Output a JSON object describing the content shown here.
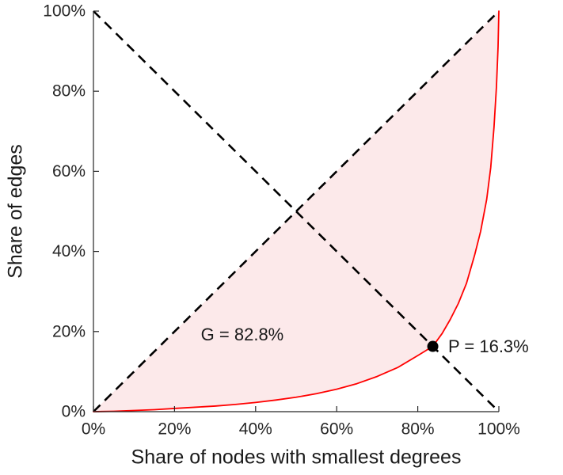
{
  "chart_data": {
    "type": "line",
    "title": "",
    "xlabel": "Share of nodes with smallest degrees",
    "ylabel": "Share of edges",
    "xlim": [
      0,
      100
    ],
    "ylim": [
      0,
      100
    ],
    "grid": false,
    "axis_color": "#262626",
    "x_ticks": [
      {
        "value": 0,
        "label": "0%"
      },
      {
        "value": 20,
        "label": "20%"
      },
      {
        "value": 40,
        "label": "40%"
      },
      {
        "value": 60,
        "label": "60%"
      },
      {
        "value": 80,
        "label": "80%"
      },
      {
        "value": 100,
        "label": "100%"
      }
    ],
    "y_ticks": [
      {
        "value": 0,
        "label": "0%"
      },
      {
        "value": 20,
        "label": "20%"
      },
      {
        "value": 40,
        "label": "40%"
      },
      {
        "value": 60,
        "label": "60%"
      },
      {
        "value": 80,
        "label": "80%"
      },
      {
        "value": 100,
        "label": "100%"
      }
    ],
    "series": [
      {
        "name": "lorenz-curve",
        "color": "#ff0000",
        "width": 1.8,
        "x": [
          0,
          5,
          10,
          15,
          20,
          25,
          30,
          35,
          40,
          45,
          50,
          55,
          60,
          65,
          70,
          75,
          80,
          83.7,
          86,
          88,
          90,
          92,
          94,
          95.5,
          97,
          98,
          98.8,
          99.4,
          99.8,
          100
        ],
        "y": [
          0,
          0.1,
          0.3,
          0.5,
          0.8,
          1.1,
          1.4,
          1.8,
          2.3,
          2.9,
          3.6,
          4.5,
          5.6,
          7,
          8.8,
          11,
          14,
          16.3,
          19.5,
          23,
          27,
          32,
          39,
          45,
          53,
          61,
          71,
          81,
          91,
          100
        ]
      }
    ],
    "reference_lines": [
      {
        "name": "equality-diagonal-line",
        "from": [
          0,
          0
        ],
        "to": [
          100,
          100
        ],
        "color": "#000000",
        "style": "dashed",
        "width": 2.6,
        "dash": "12 8"
      },
      {
        "name": "anti-diagonal-line",
        "from": [
          0,
          100
        ],
        "to": [
          100,
          0
        ],
        "color": "#000000",
        "style": "dashed",
        "width": 2.6,
        "dash": "12 8"
      }
    ],
    "shaded_area": {
      "name": "gini-area",
      "between": "equality-diagonal-and-lorenz-curve",
      "fill": "#f6c4c8",
      "opacity": 0.38
    },
    "point": {
      "name": "intersection-point",
      "x": 83.7,
      "y": 16.3,
      "color": "#000000",
      "radius": 7
    },
    "annotations": [
      {
        "name": "annotation-gini",
        "text": "G = 82.8%",
        "x": 26.5,
        "y": 19.3,
        "anchor": "start",
        "color": "#1a1a1a"
      },
      {
        "name": "annotation-intersection",
        "text": "P = 16.3%",
        "x": 87.5,
        "y": 16.3,
        "anchor": "start",
        "color": "#1a1a1a"
      }
    ],
    "gini_value": "82.8%",
    "intersection_value": "16.3%"
  }
}
